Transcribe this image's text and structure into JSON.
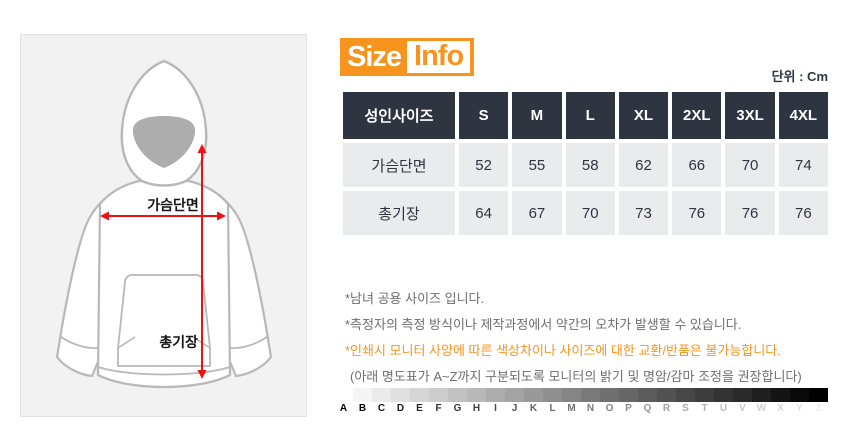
{
  "theme": {
    "orange": "#f7941d",
    "table_header_bg": "#2e3440",
    "table_row_bg": "#e9ebed",
    "note_text_color": "#6e6e6e",
    "arrow_red": "#ee1111"
  },
  "logo": {
    "text_size": "Size",
    "text_info": "Info"
  },
  "diagram": {
    "chest_label": "가슴단면",
    "length_label": "총기장"
  },
  "size_table": {
    "unit_label": "단위 : Cm",
    "columns": [
      "성인사이즈",
      "S",
      "M",
      "L",
      "XL",
      "2XL",
      "3XL",
      "4XL"
    ],
    "rows": [
      {
        "label": "가슴단면",
        "values": [
          "52",
          "55",
          "58",
          "62",
          "66",
          "70",
          "74"
        ]
      },
      {
        "label": "총기장",
        "values": [
          "64",
          "67",
          "70",
          "73",
          "76",
          "76",
          "76"
        ]
      }
    ]
  },
  "notes": {
    "line1": "*남녀 공용 사이즈 입니다.",
    "line2": "*측정자의 측정 방식이나 제작과정에서 약간의 오차가 발생할 수 있습니다.",
    "line3": "*인쇄시 모니터 사양에 따른 색상차이나 사이즈에 대한 교환/반품은 불가능합니다.",
    "line4": "(아래 명도표가 A~Z까지 구분되도록 모니터의 밝기 및 명암/감마 조정을 권장합니다)"
  },
  "gamma_chart": {
    "letters": [
      "A",
      "B",
      "C",
      "D",
      "E",
      "F",
      "G",
      "H",
      "I",
      "J",
      "K",
      "L",
      "M",
      "N",
      "O",
      "P",
      "Q",
      "R",
      "S",
      "T",
      "U",
      "V",
      "W",
      "X",
      "Y",
      "Z"
    ]
  }
}
